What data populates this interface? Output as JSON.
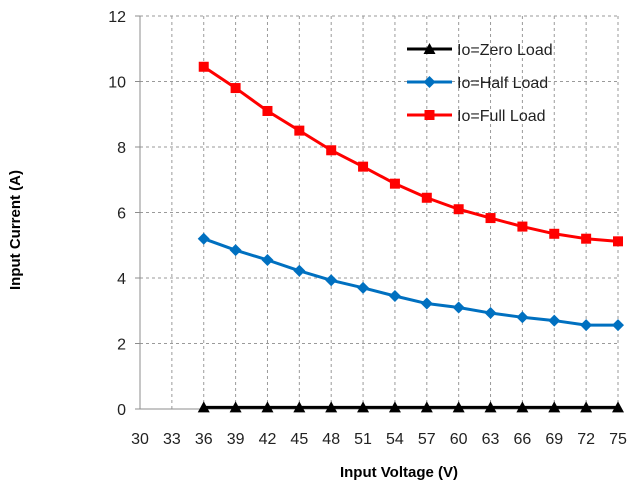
{
  "chart_data": {
    "type": "line",
    "title": "",
    "xlabel": "Input Voltage (V)",
    "ylabel": "Input Current (A)",
    "x_tick_labels": [
      "30",
      "33",
      "36",
      "39",
      "42",
      "45",
      "48",
      "51",
      "54",
      "57",
      "60",
      "63",
      "66",
      "69",
      "72",
      "75"
    ],
    "y_tick_labels": [
      "0",
      "2",
      "4",
      "6",
      "8",
      "10",
      "12"
    ],
    "ylim": [
      0,
      12
    ],
    "grid": true,
    "legend_position": "top-right",
    "x": [
      36,
      39,
      42,
      45,
      48,
      51,
      54,
      57,
      60,
      63,
      66,
      69,
      72,
      75
    ],
    "series": [
      {
        "name": "Io=Zero Load",
        "color": "#000000",
        "marker": "triangle",
        "values": [
          0.05,
          0.05,
          0.05,
          0.05,
          0.05,
          0.05,
          0.05,
          0.05,
          0.05,
          0.05,
          0.05,
          0.05,
          0.05,
          0.05
        ]
      },
      {
        "name": "Io=Half Load",
        "color": "#0070C0",
        "marker": "diamond",
        "values": [
          5.2,
          4.85,
          4.55,
          4.22,
          3.93,
          3.7,
          3.45,
          3.22,
          3.1,
          2.93,
          2.8,
          2.7,
          2.56,
          2.56
        ]
      },
      {
        "name": "Io=Full Load",
        "color": "#FF0000",
        "marker": "square",
        "values": [
          10.45,
          9.8,
          9.1,
          8.5,
          7.9,
          7.4,
          6.88,
          6.45,
          6.1,
          5.83,
          5.57,
          5.35,
          5.2,
          5.12
        ]
      }
    ]
  }
}
